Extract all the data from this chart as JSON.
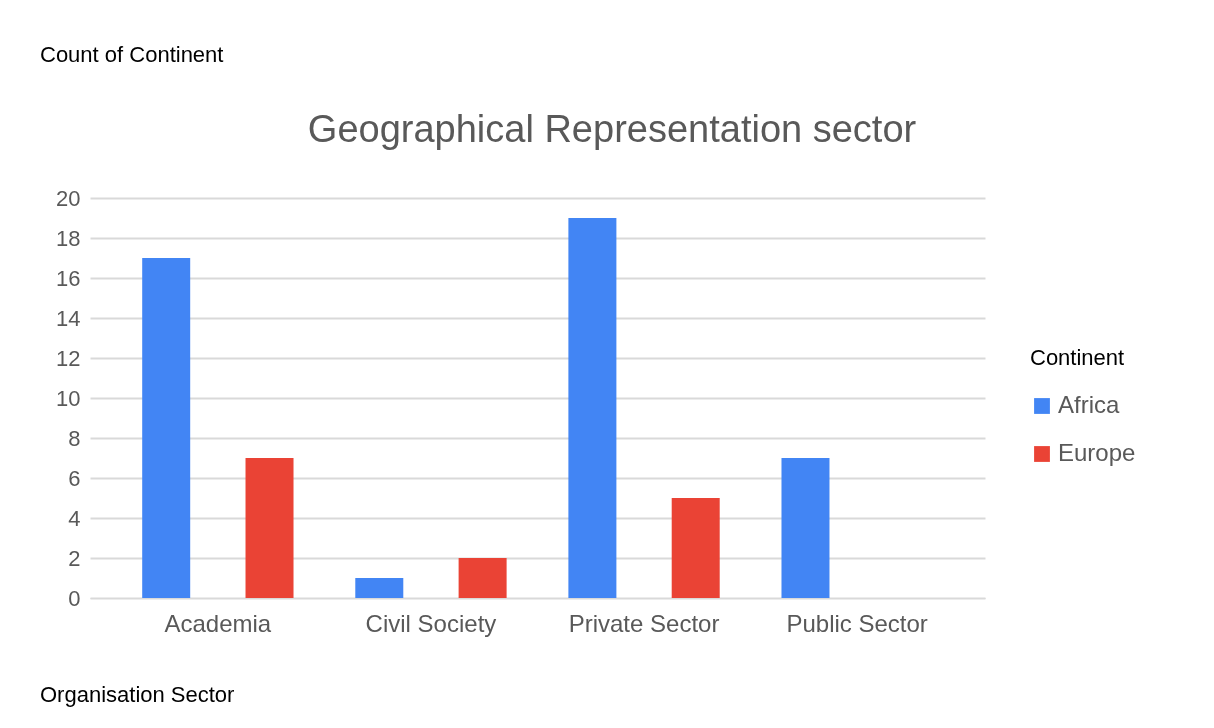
{
  "chart_data": {
    "type": "bar",
    "title": "Geographical Representation sector",
    "xlabel": "Organisation Sector",
    "legend_title": "Continent",
    "annotations": [
      "Count of Continent"
    ],
    "categories": [
      "Academia",
      "Civil Society",
      "Private Sector",
      "Public Sector"
    ],
    "series": [
      {
        "name": "Africa",
        "color": "#4285f4",
        "values": [
          17,
          1,
          19,
          7
        ]
      },
      {
        "name": "Europe",
        "color": "#ea4335",
        "values": [
          7,
          2,
          5,
          null
        ]
      }
    ],
    "ylim": [
      0,
      20
    ],
    "yticks": [
      0,
      2,
      4,
      6,
      8,
      10,
      12,
      14,
      16,
      18,
      20
    ],
    "grid": "y",
    "legend": "right"
  }
}
